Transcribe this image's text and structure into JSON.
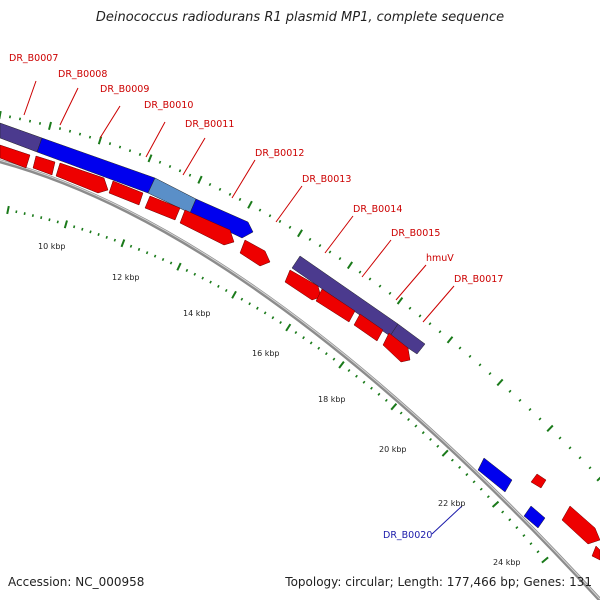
{
  "title": "Deinococcus radiodurans R1 plasmid MP1, complete sequence",
  "accession_text": "Accession: NC_000958",
  "summary_text": "Topology: circular; Length: 177,466 bp; Genes: 131",
  "colors": {
    "forward_gene": "#0000ee",
    "forward_gene_light": "#5a8fc8",
    "forward_gene_dark": "#4b3a8e",
    "reverse_gene": "#ee0000",
    "backbone": "#8c8c8c",
    "tick": "#1a7a1a",
    "label_red": "#cc0000",
    "label_blue": "#1a1aaa"
  },
  "scale_labels": [
    "10 kbp",
    "12 kbp",
    "14 kbp",
    "16 kbp",
    "18 kbp",
    "20 kbp",
    "22 kbp",
    "24 kbp"
  ],
  "gene_labels": [
    {
      "text": "DR_B0007",
      "color": "red"
    },
    {
      "text": "DR_B0008",
      "color": "red"
    },
    {
      "text": "DR_B0009",
      "color": "red"
    },
    {
      "text": "DR_B0010",
      "color": "red"
    },
    {
      "text": "DR_B0011",
      "color": "red"
    },
    {
      "text": "DR_B0012",
      "color": "red"
    },
    {
      "text": "DR_B0013",
      "color": "red"
    },
    {
      "text": "DR_B0014",
      "color": "red"
    },
    {
      "text": "DR_B0015",
      "color": "red"
    },
    {
      "text": "hmuV",
      "color": "red"
    },
    {
      "text": "DR_B0017",
      "color": "red"
    },
    {
      "text": "DR_B0020",
      "color": "blue"
    }
  ]
}
